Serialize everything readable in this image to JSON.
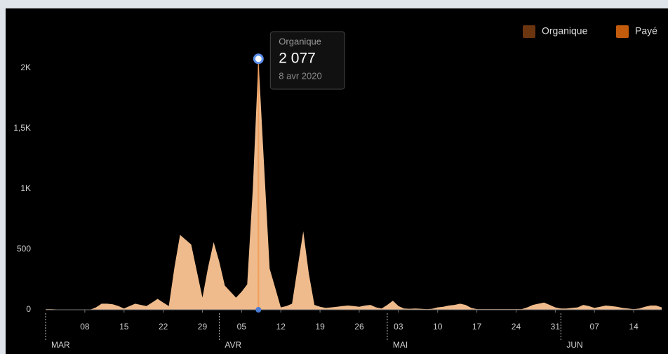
{
  "chart_data": {
    "type": "area",
    "x": [
      "2020-03-01",
      "2020-03-02",
      "2020-03-03",
      "2020-03-04",
      "2020-03-05",
      "2020-03-06",
      "2020-03-07",
      "2020-03-08",
      "2020-03-09",
      "2020-03-10",
      "2020-03-11",
      "2020-03-12",
      "2020-03-13",
      "2020-03-14",
      "2020-03-15",
      "2020-03-16",
      "2020-03-17",
      "2020-03-18",
      "2020-03-19",
      "2020-03-20",
      "2020-03-21",
      "2020-03-22",
      "2020-03-23",
      "2020-03-24",
      "2020-03-25",
      "2020-03-26",
      "2020-03-27",
      "2020-03-28",
      "2020-03-29",
      "2020-03-30",
      "2020-03-31",
      "2020-04-01",
      "2020-04-02",
      "2020-04-03",
      "2020-04-04",
      "2020-04-05",
      "2020-04-06",
      "2020-04-07",
      "2020-04-08",
      "2020-04-09",
      "2020-04-10",
      "2020-04-11",
      "2020-04-12",
      "2020-04-13",
      "2020-04-14",
      "2020-04-15",
      "2020-04-16",
      "2020-04-17",
      "2020-04-18",
      "2020-04-19",
      "2020-04-20",
      "2020-04-21",
      "2020-04-22",
      "2020-04-23",
      "2020-04-24",
      "2020-04-25",
      "2020-04-26",
      "2020-04-27",
      "2020-04-28",
      "2020-04-29",
      "2020-04-30",
      "2020-05-01",
      "2020-05-02",
      "2020-05-03",
      "2020-05-04",
      "2020-05-05",
      "2020-05-06",
      "2020-05-07",
      "2020-05-08",
      "2020-05-09",
      "2020-05-10",
      "2020-05-11",
      "2020-05-12",
      "2020-05-13",
      "2020-05-14",
      "2020-05-15",
      "2020-05-16",
      "2020-05-17",
      "2020-05-18",
      "2020-05-19",
      "2020-05-20",
      "2020-05-21",
      "2020-05-22",
      "2020-05-23",
      "2020-05-24",
      "2020-05-25",
      "2020-05-26",
      "2020-05-27",
      "2020-05-28",
      "2020-05-29",
      "2020-05-30",
      "2020-05-31",
      "2020-06-01",
      "2020-06-02",
      "2020-06-03",
      "2020-06-04",
      "2020-06-05",
      "2020-06-06",
      "2020-06-07",
      "2020-06-08",
      "2020-06-09",
      "2020-06-10",
      "2020-06-11",
      "2020-06-12",
      "2020-06-13",
      "2020-06-14",
      "2020-06-15",
      "2020-06-16",
      "2020-06-17",
      "2020-06-18",
      "2020-06-19"
    ],
    "series": [
      {
        "name": "Organique",
        "color": "#6b3510",
        "fill": "#fcc594",
        "values": [
          5,
          5,
          3,
          2,
          2,
          2,
          3,
          2,
          2,
          20,
          50,
          50,
          45,
          30,
          10,
          30,
          50,
          40,
          30,
          60,
          90,
          60,
          30,
          350,
          620,
          580,
          540,
          320,
          100,
          350,
          560,
          400,
          200,
          150,
          100,
          150,
          210,
          1000,
          2077,
          1200,
          340,
          180,
          20,
          30,
          50,
          350,
          650,
          300,
          40,
          25,
          15,
          20,
          25,
          30,
          35,
          30,
          25,
          35,
          40,
          20,
          10,
          40,
          75,
          30,
          10,
          8,
          10,
          8,
          5,
          8,
          20,
          25,
          35,
          40,
          50,
          40,
          15,
          5,
          5,
          5,
          5,
          5,
          5,
          5,
          5,
          5,
          20,
          40,
          50,
          60,
          40,
          20,
          10,
          10,
          15,
          20,
          40,
          30,
          15,
          25,
          35,
          30,
          25,
          15,
          10,
          5,
          10,
          25,
          35,
          35,
          20
        ]
      },
      {
        "name": "Payé",
        "color": "#c25b0c",
        "fill": "#c25b0c",
        "values": [
          0,
          0,
          0,
          0,
          0,
          0,
          0,
          0,
          0,
          0,
          0,
          0,
          0,
          0,
          0,
          0,
          0,
          0,
          0,
          0,
          0,
          0,
          0,
          0,
          0,
          0,
          0,
          0,
          0,
          0,
          0,
          0,
          0,
          0,
          0,
          0,
          0,
          0,
          0,
          0,
          0,
          0,
          0,
          0,
          0,
          0,
          0,
          0,
          0,
          0,
          0,
          0,
          0,
          0,
          0,
          0,
          0,
          0,
          0,
          0,
          0,
          0,
          0,
          0,
          0,
          0,
          0,
          0,
          0,
          0,
          0,
          0,
          0,
          0,
          0,
          0,
          0,
          0,
          0,
          0,
          0,
          0,
          0,
          0,
          0,
          0,
          0,
          0,
          0,
          0,
          0,
          0,
          0,
          0,
          0,
          0,
          0,
          0,
          0,
          0,
          0,
          0,
          0,
          0,
          0,
          0,
          0,
          0,
          0,
          0,
          0
        ]
      }
    ],
    "xlim": [
      "2020-03-01",
      "2020-06-19"
    ],
    "xticks": [
      {
        "value": "2020-03-08",
        "label": "08"
      },
      {
        "value": "2020-03-15",
        "label": "15"
      },
      {
        "value": "2020-03-22",
        "label": "22"
      },
      {
        "value": "2020-03-29",
        "label": "29"
      },
      {
        "value": "2020-04-05",
        "label": "05"
      },
      {
        "value": "2020-04-12",
        "label": "12"
      },
      {
        "value": "2020-04-19",
        "label": "19"
      },
      {
        "value": "2020-04-26",
        "label": "26"
      },
      {
        "value": "2020-05-03",
        "label": "03"
      },
      {
        "value": "2020-05-10",
        "label": "10"
      },
      {
        "value": "2020-05-17",
        "label": "17"
      },
      {
        "value": "2020-05-24",
        "label": "24"
      },
      {
        "value": "2020-05-31",
        "label": "31"
      },
      {
        "value": "2020-06-07",
        "label": "07"
      },
      {
        "value": "2020-06-14",
        "label": "14"
      }
    ],
    "month_ticks": [
      {
        "value": "2020-03-01",
        "label": "MAR"
      },
      {
        "value": "2020-04-01",
        "label": "AVR"
      },
      {
        "value": "2020-05-01",
        "label": "MAI"
      },
      {
        "value": "2020-06-01",
        "label": "JUN"
      }
    ],
    "ylim": [
      0,
      2400
    ],
    "yticks": [
      0,
      500,
      {
        "value": 1000,
        "label": "1K"
      },
      {
        "value": 1500,
        "label": "1,5K"
      },
      {
        "value": 2000,
        "label": "2K"
      }
    ],
    "legend": "top-right",
    "tooltip": {
      "x": "2020-04-08",
      "value": 2077,
      "value_label": "2 077",
      "date_label": "8 avr 2020"
    }
  }
}
